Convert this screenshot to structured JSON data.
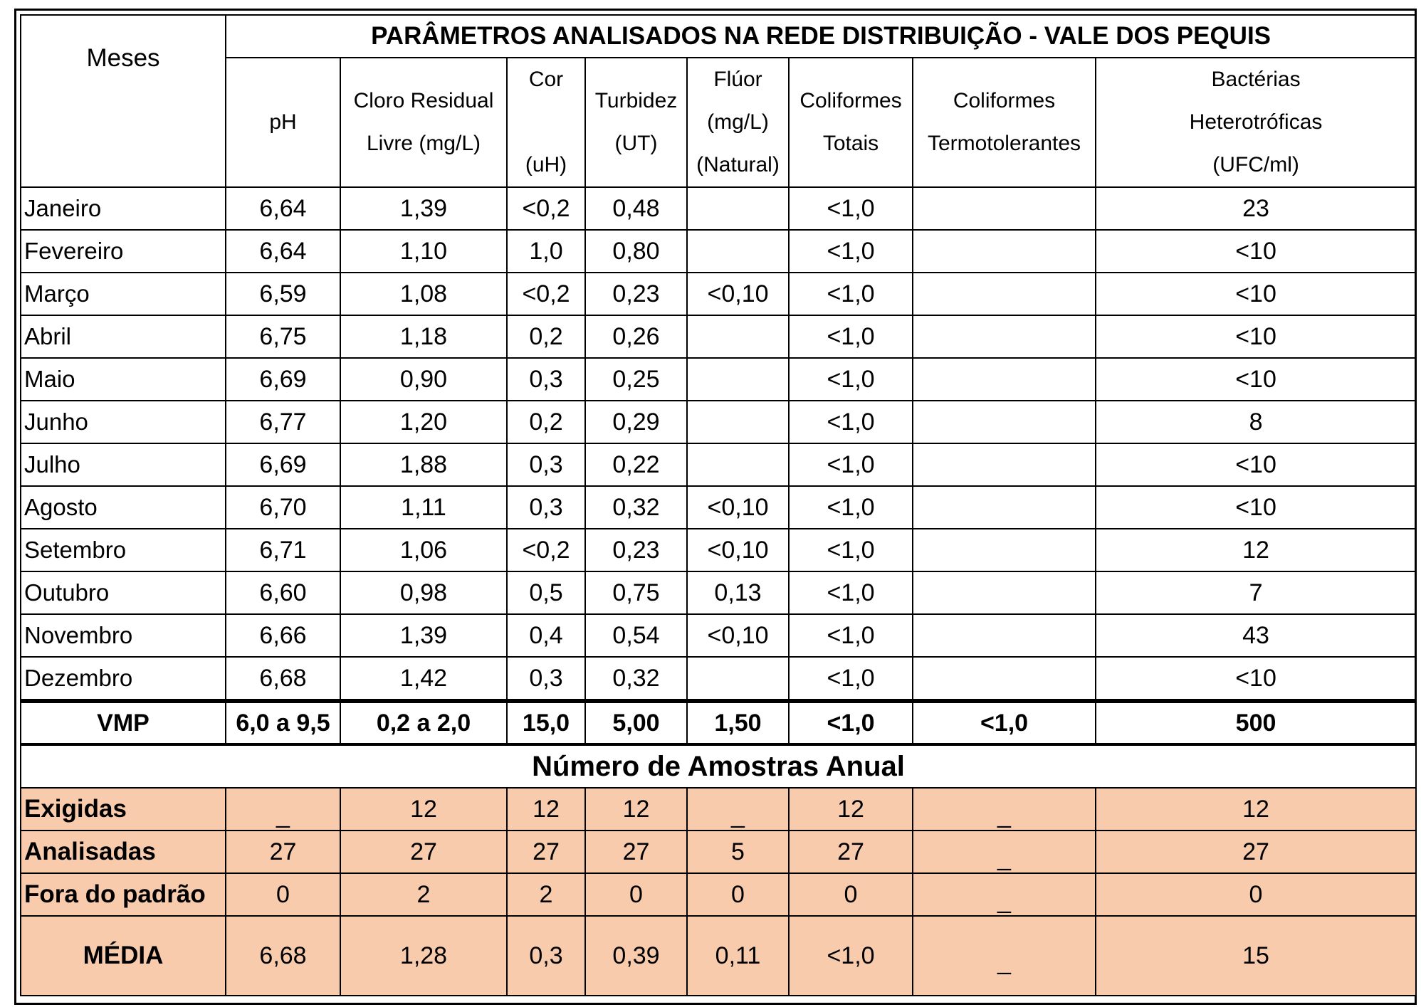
{
  "title": "PARÂMETROS ANALISADOS NA REDE DISTRIBUIÇÃO - VALE DOS PEQUIS",
  "months_header": "Meses",
  "columns": [
    {
      "lines": [
        "pH"
      ]
    },
    {
      "lines": [
        "Cloro Residual",
        "Livre (mg/L)"
      ]
    },
    {
      "lines": [
        "Cor",
        "",
        "(uH)"
      ]
    },
    {
      "lines": [
        "Turbidez",
        "(UT)"
      ]
    },
    {
      "lines": [
        "Flúor",
        "(mg/L)",
        "(Natural)"
      ]
    },
    {
      "lines": [
        "Coliformes",
        "Totais"
      ]
    },
    {
      "lines": [
        "Coliformes",
        "Termotolerantes"
      ]
    },
    {
      "lines": [
        "Bactérias",
        "Heterotróficas",
        "(UFC/ml)"
      ]
    }
  ],
  "rows": [
    {
      "month": "Janeiro",
      "values": [
        "6,64",
        "1,39",
        "<0,2",
        "0,48",
        "",
        "<1,0",
        "",
        "23"
      ]
    },
    {
      "month": "Fevereiro",
      "values": [
        "6,64",
        "1,10",
        "1,0",
        "0,80",
        "",
        "<1,0",
        "",
        "<10"
      ]
    },
    {
      "month": "Março",
      "values": [
        "6,59",
        "1,08",
        "<0,2",
        "0,23",
        "<0,10",
        "<1,0",
        "",
        "<10"
      ]
    },
    {
      "month": "Abril",
      "values": [
        "6,75",
        "1,18",
        "0,2",
        "0,26",
        "",
        "<1,0",
        "",
        "<10"
      ]
    },
    {
      "month": "Maio",
      "values": [
        "6,69",
        "0,90",
        "0,3",
        "0,25",
        "",
        "<1,0",
        "",
        "<10"
      ]
    },
    {
      "month": "Junho",
      "values": [
        "6,77",
        "1,20",
        "0,2",
        "0,29",
        "",
        "<1,0",
        "",
        "8"
      ]
    },
    {
      "month": "Julho",
      "values": [
        "6,69",
        "1,88",
        "0,3",
        "0,22",
        "",
        "<1,0",
        "",
        "<10"
      ]
    },
    {
      "month": "Agosto",
      "values": [
        "6,70",
        "1,11",
        "0,3",
        "0,32",
        "<0,10",
        "<1,0",
        "",
        "<10"
      ]
    },
    {
      "month": "Setembro",
      "values": [
        "6,71",
        "1,06",
        "<0,2",
        "0,23",
        "<0,10",
        "<1,0",
        "",
        "12"
      ]
    },
    {
      "month": "Outubro",
      "values": [
        "6,60",
        "0,98",
        "0,5",
        "0,75",
        "0,13",
        "<1,0",
        "",
        "7"
      ]
    },
    {
      "month": "Novembro",
      "values": [
        "6,66",
        "1,39",
        "0,4",
        "0,54",
        "<0,10",
        "<1,0",
        "",
        "43"
      ]
    },
    {
      "month": "Dezembro",
      "values": [
        "6,68",
        "1,42",
        "0,3",
        "0,32",
        "",
        "<1,0",
        "",
        "<10"
      ]
    }
  ],
  "vmp": {
    "label": "VMP",
    "values": [
      "6,0 a 9,5",
      "0,2 a 2,0",
      "15,0",
      "5,00",
      "1,50",
      "<1,0",
      "<1,0",
      "500"
    ]
  },
  "samples": {
    "title": "Número de Amostras Anual",
    "rows": [
      {
        "label": "Exigidas",
        "values": [
          "_",
          "12",
          "12",
          "12",
          "_",
          "12",
          "_",
          "12"
        ]
      },
      {
        "label": "Analisadas",
        "values": [
          "27",
          "27",
          "27",
          "27",
          "5",
          "27",
          "_",
          "27"
        ]
      },
      {
        "label": "Fora do padrão",
        "values": [
          "0",
          "2",
          "2",
          "0",
          "0",
          "0",
          "_",
          "0"
        ]
      },
      {
        "label": "MÉDIA",
        "values": [
          "6,68",
          "1,28",
          "0,3",
          "0,39",
          "0,11",
          "<1,0",
          "_",
          "15"
        ]
      }
    ]
  },
  "colors": {
    "sample_fill": "#f8cbad",
    "border": "#000000"
  }
}
